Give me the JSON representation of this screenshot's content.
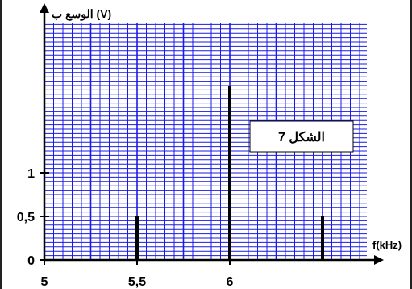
{
  "chart_data": {
    "type": "bar",
    "title": "",
    "ylabel": "الوسع ب (V)",
    "xlabel": "f(kHz)",
    "annotation": "الشكل 7",
    "x_ticks": [
      {
        "value": 5,
        "label": "5"
      },
      {
        "value": 5.5,
        "label": "5,5"
      },
      {
        "value": 6,
        "label": "6"
      }
    ],
    "y_ticks": [
      {
        "value": 0,
        "label": "0"
      },
      {
        "value": 0.5,
        "label": "0,5"
      },
      {
        "value": 1,
        "label": "1"
      }
    ],
    "xlim": [
      5,
      6.97
    ],
    "ylim": [
      0,
      2.7
    ],
    "series": [
      {
        "x": [
          5.5,
          6,
          6.5
        ],
        "values": [
          0.5,
          2,
          0.5
        ]
      }
    ],
    "grid": true,
    "colors": {
      "grid": "#1a1ae6",
      "bars": "#000000",
      "axes": "#000000"
    }
  }
}
